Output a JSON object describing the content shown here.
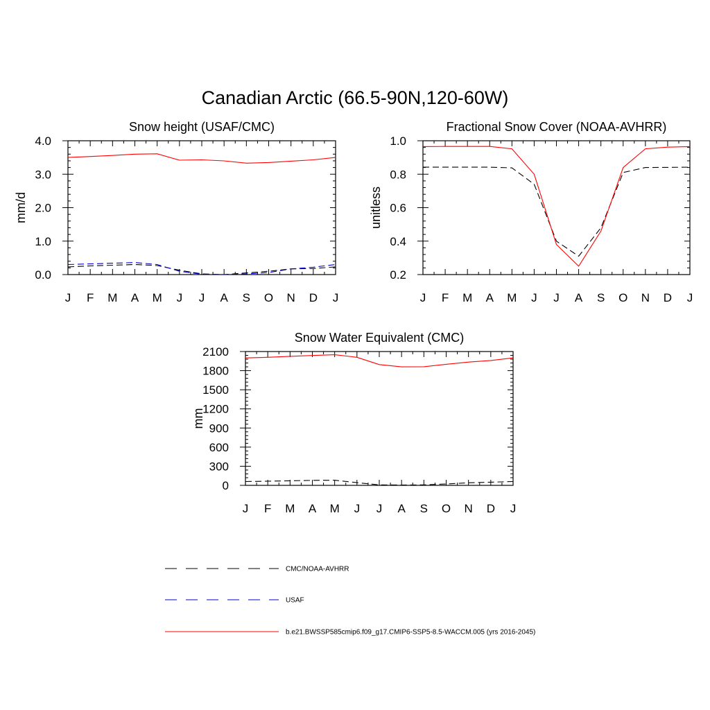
{
  "figure": {
    "title": "Canadian Arctic (66.5-90N,120-60W)"
  },
  "colors": {
    "obs": "#000000",
    "usaf": "#0000cc",
    "model": "#ff0000"
  },
  "legend": {
    "entries": [
      {
        "label": "CMC/NOAA-AVHRR",
        "color": "#000000",
        "style": "dashed"
      },
      {
        "label": "USAF",
        "color": "#0000cc",
        "style": "dashed"
      },
      {
        "label": "b.e21.BWSSP585cmip6.f09_g17.CMIP6-SSP5-8.5-WACCM.005 (yrs 2016-2045)",
        "color": "#ff0000",
        "style": "solid"
      }
    ]
  },
  "chart_data": [
    {
      "type": "line",
      "title": "Snow height (USAF/CMC)",
      "ylabel": "mm/d",
      "categories": [
        "J",
        "F",
        "M",
        "A",
        "M",
        "J",
        "J",
        "A",
        "S",
        "O",
        "N",
        "D",
        "J"
      ],
      "ylim": [
        0,
        4
      ],
      "yticks": [
        0,
        1,
        2,
        3,
        4
      ],
      "ytick_labels": [
        "0.0",
        "1.0",
        "2.0",
        "3.0",
        "4.0"
      ],
      "series": [
        {
          "name": "b.e21.BWSSP585cmip6.f09_g17.CMIP6-SSP5-8.5-WACCM.005 (yrs 2016-2045)",
          "style": "solid",
          "color": "#ff0000",
          "values": [
            3.5,
            3.53,
            3.56,
            3.6,
            3.61,
            3.42,
            3.43,
            3.4,
            3.33,
            3.35,
            3.39,
            3.43,
            3.5
          ]
        },
        {
          "name": "USAF",
          "style": "dashed",
          "color": "#0000cc",
          "values": [
            0.3,
            0.32,
            0.34,
            0.36,
            0.3,
            0.1,
            0.01,
            0.0,
            0.02,
            0.06,
            0.17,
            0.22,
            0.3
          ]
        },
        {
          "name": "CMC/NOAA-AVHRR",
          "style": "dashed",
          "color": "#000000",
          "values": [
            0.23,
            0.26,
            0.28,
            0.3,
            0.27,
            0.13,
            0.02,
            0.0,
            0.05,
            0.1,
            0.17,
            0.18,
            0.23
          ]
        }
      ]
    },
    {
      "type": "line",
      "title": "Fractional Snow Cover (NOAA-AVHRR)",
      "ylabel": "unitless",
      "categories": [
        "J",
        "F",
        "M",
        "A",
        "M",
        "J",
        "J",
        "A",
        "S",
        "O",
        "N",
        "D",
        "J"
      ],
      "ylim": [
        0.2,
        1.0
      ],
      "yticks": [
        0.2,
        0.4,
        0.6,
        0.8,
        1.0
      ],
      "ytick_labels": [
        "0.2",
        "0.4",
        "0.6",
        "0.8",
        "1.0"
      ],
      "series": [
        {
          "name": "b.e21.BWSSP585cmip6.f09_g17.CMIP6-SSP5-8.5-WACCM.005 (yrs 2016-2045)",
          "style": "solid",
          "color": "#ff0000",
          "values": [
            0.965,
            0.966,
            0.966,
            0.966,
            0.952,
            0.8,
            0.38,
            0.25,
            0.46,
            0.84,
            0.952,
            0.962,
            0.965
          ]
        },
        {
          "name": "CMC/NOAA-AVHRR",
          "style": "dashed",
          "color": "#000000",
          "values": [
            0.842,
            0.842,
            0.842,
            0.842,
            0.838,
            0.74,
            0.4,
            0.31,
            0.48,
            0.81,
            0.84,
            0.841,
            0.842
          ]
        }
      ]
    },
    {
      "type": "line",
      "title": "Snow Water Equivalent (CMC)",
      "ylabel": "mm",
      "categories": [
        "J",
        "F",
        "M",
        "A",
        "M",
        "J",
        "J",
        "A",
        "S",
        "O",
        "N",
        "D",
        "J"
      ],
      "ylim": [
        0,
        2100
      ],
      "yticks": [
        0,
        300,
        600,
        900,
        1200,
        1500,
        1800,
        2100
      ],
      "ytick_labels": [
        "0",
        "300",
        "600",
        "900",
        "1200",
        "1500",
        "1800",
        "2100"
      ],
      "series": [
        {
          "name": "b.e21.BWSSP585cmip6.f09_g17.CMIP6-SSP5-8.5-WACCM.005 (yrs 2016-2045)",
          "style": "solid",
          "color": "#ff0000",
          "values": [
            2000,
            2010,
            2025,
            2038,
            2050,
            2010,
            1895,
            1860,
            1862,
            1900,
            1935,
            1960,
            2000
          ]
        },
        {
          "name": "CMC/NOAA-AVHRR",
          "style": "dashed",
          "color": "#000000",
          "values": [
            60,
            65,
            72,
            78,
            80,
            42,
            8,
            5,
            8,
            22,
            40,
            50,
            60
          ]
        }
      ]
    }
  ]
}
